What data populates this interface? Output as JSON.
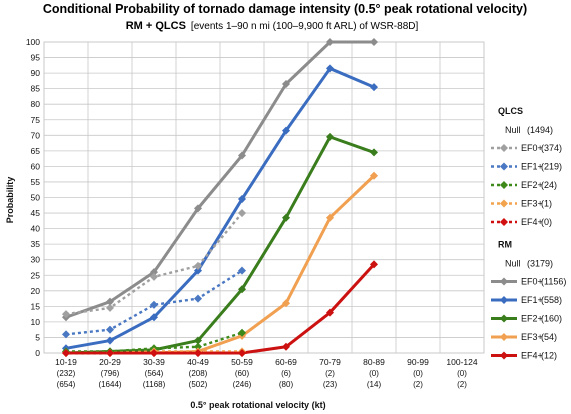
{
  "chart_data": {
    "type": "line",
    "title": "Conditional Probability of tornado damage intensity (0.5° peak rotational velocity)",
    "subtitle_main": "RM + QLCS",
    "subtitle_extra": "[events 1–90 n mi (100–9,900 ft ARL) of WSR-88D]",
    "xlabel": "0.5° peak rotational velocity (kt)",
    "ylabel": "Probability",
    "ylim": [
      0,
      100
    ],
    "yticks": [
      0,
      5,
      10,
      15,
      20,
      25,
      30,
      35,
      40,
      45,
      50,
      55,
      60,
      65,
      70,
      75,
      80,
      85,
      90,
      95,
      100
    ],
    "grid": true,
    "legend_position": "right",
    "categories": [
      "10-19",
      "20-29",
      "30-39",
      "40-49",
      "50-59",
      "60-69",
      "70-79",
      "80-89",
      "90-99",
      "100-124"
    ],
    "counts_qlcs": [
      "(232)",
      "(796)",
      "(564)",
      "(208)",
      "(60)",
      "(6)",
      "(2)",
      "(0)",
      "(0)",
      "(0)"
    ],
    "counts_rm": [
      "(654)",
      "(1644)",
      "(1168)",
      "(502)",
      "(246)",
      "(80)",
      "(23)",
      "(14)",
      "(2)",
      "(2)"
    ],
    "groups": [
      {
        "name": "QLCS",
        "null_label": "Null",
        "null_count": "(1494)",
        "series": [
          {
            "name": "EF0+",
            "count": "(374)",
            "color": "#a0a0a0",
            "dashed": true,
            "values": [
              12.5,
              14.5,
              24.5,
              28,
              45,
              null,
              null,
              null,
              null,
              null
            ]
          },
          {
            "name": "EF1+",
            "count": "(219)",
            "color": "#4a78c2",
            "dashed": true,
            "values": [
              6,
              7.5,
              15.5,
              17.5,
              26.5,
              null,
              null,
              null,
              null,
              null
            ]
          },
          {
            "name": "EF2+",
            "count": "(24)",
            "color": "#3d8a1a",
            "dashed": true,
            "values": [
              0.5,
              0.5,
              1.5,
              2,
              6.5,
              null,
              null,
              null,
              null,
              null
            ]
          },
          {
            "name": "EF3+",
            "count": "(1)",
            "color": "#f2a34e",
            "dashed": true,
            "values": [
              0,
              0,
              0.5,
              0.5,
              0.5,
              null,
              null,
              null,
              null,
              null
            ]
          },
          {
            "name": "EF4+",
            "count": "(0)",
            "color": "#d01010",
            "dashed": true,
            "values": [
              0,
              0,
              0,
              0,
              0,
              null,
              null,
              null,
              null,
              null
            ]
          }
        ]
      },
      {
        "name": "RM",
        "null_label": "Null",
        "null_count": "(3179)",
        "series": [
          {
            "name": "EF0+",
            "count": "(1156)",
            "color": "#8c8c8c",
            "dashed": false,
            "values": [
              11.5,
              16.5,
              26,
              46.5,
              63.5,
              86.5,
              100,
              100,
              null,
              null
            ]
          },
          {
            "name": "EF1+",
            "count": "(558)",
            "color": "#3a6cc0",
            "dashed": false,
            "values": [
              1.5,
              4,
              11.5,
              26.5,
              49.5,
              71.5,
              91.5,
              85.5,
              null,
              null
            ]
          },
          {
            "name": "EF2+",
            "count": "(160)",
            "color": "#3a7d1c",
            "dashed": false,
            "values": [
              0,
              0.5,
              1,
              4,
              20.5,
              43.5,
              69.5,
              64.5,
              null,
              null
            ]
          },
          {
            "name": "EF3+",
            "count": "(54)",
            "color": "#f0a050",
            "dashed": false,
            "values": [
              0,
              0,
              0,
              0.5,
              5.5,
              16,
              43.5,
              57,
              null,
              null
            ]
          },
          {
            "name": "EF4+",
            "count": "(12)",
            "color": "#cc1111",
            "dashed": false,
            "values": [
              0,
              0,
              0,
              0,
              0,
              2,
              13,
              28.5,
              null,
              null
            ]
          }
        ]
      }
    ]
  }
}
